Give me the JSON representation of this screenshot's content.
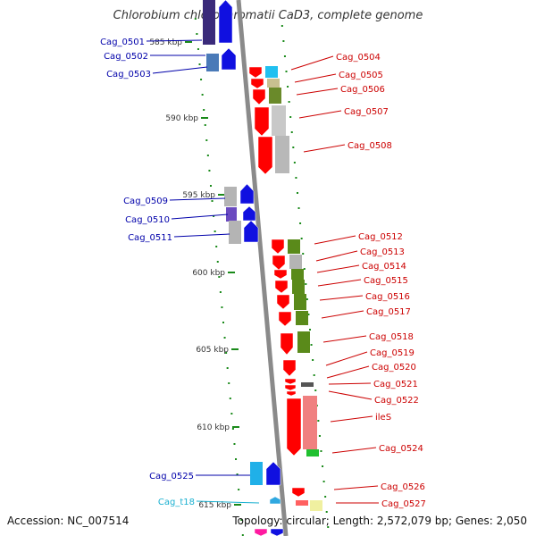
{
  "title": "Chlorobium chlorochromatii CaD3, complete genome",
  "footer": {
    "accession": "Accession: NC_007514",
    "summary": "Topology: circular; Length: 2,572,079 bp; Genes: 2,050"
  },
  "colors": {
    "backbone": "#8a8a8a",
    "tick": "#1a8a1a",
    "left_label": "#0000aa",
    "right_label": "#cc0000",
    "trna_label": "#1ab0d0"
  },
  "scale": {
    "unit": "kbp",
    "ticks": [
      {
        "kbp": 585,
        "label": "585 kbp"
      },
      {
        "kbp": 590,
        "label": "590 kbp"
      },
      {
        "kbp": 595,
        "label": "595 kbp"
      },
      {
        "kbp": 600,
        "label": "600 kbp"
      },
      {
        "kbp": 605,
        "label": "605 kbp"
      },
      {
        "kbp": 610,
        "label": "610 kbp"
      },
      {
        "kbp": 615,
        "label": "615 kbp"
      }
    ]
  },
  "left_genes": [
    {
      "label": "Cag_0501"
    },
    {
      "label": "Cag_0502"
    },
    {
      "label": "Cag_0503"
    },
    {
      "label": "Cag_0509"
    },
    {
      "label": "Cag_0510"
    },
    {
      "label": "Cag_0511"
    },
    {
      "label": "Cag_0525"
    },
    {
      "label": "Cag_t18"
    }
  ],
  "right_genes": [
    {
      "label": "Cag_0504"
    },
    {
      "label": "Cag_0505"
    },
    {
      "label": "Cag_0506"
    },
    {
      "label": "Cag_0507"
    },
    {
      "label": "Cag_0508"
    },
    {
      "label": "Cag_0512"
    },
    {
      "label": "Cag_0513"
    },
    {
      "label": "Cag_0514"
    },
    {
      "label": "Cag_0515"
    },
    {
      "label": "Cag_0516"
    },
    {
      "label": "Cag_0517"
    },
    {
      "label": "Cag_0518"
    },
    {
      "label": "Cag_0519"
    },
    {
      "label": "Cag_0520"
    },
    {
      "label": "Cag_0521"
    },
    {
      "label": "Cag_0522"
    },
    {
      "label": "ileS"
    },
    {
      "label": "Cag_0524"
    },
    {
      "label": "Cag_0526"
    },
    {
      "label": "Cag_0527"
    }
  ]
}
